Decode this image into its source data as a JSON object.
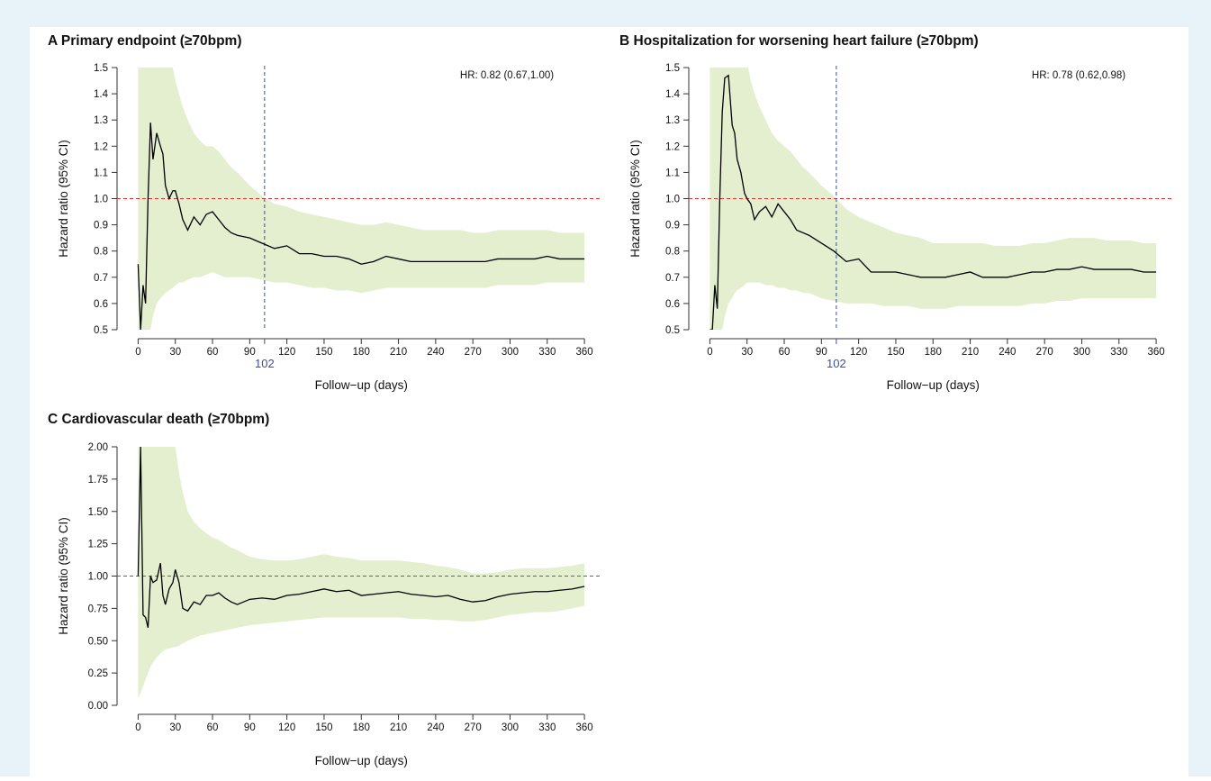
{
  "chart_data": [
    {
      "type": "line",
      "title": "A Primary endpoint (≥70bpm)",
      "xlabel": "Follow−up (days)",
      "ylabel": "Hazard ratio (95% CI)",
      "annotation": "HR: 0.82 (0.67,1.00)",
      "x": [
        0,
        2,
        4,
        6,
        8,
        10,
        12,
        15,
        18,
        20,
        22,
        25,
        28,
        30,
        33,
        36,
        40,
        45,
        50,
        55,
        60,
        65,
        70,
        75,
        80,
        90,
        100,
        110,
        120,
        130,
        140,
        150,
        160,
        170,
        180,
        190,
        200,
        210,
        220,
        230,
        240,
        250,
        260,
        270,
        280,
        290,
        300,
        310,
        320,
        330,
        340,
        350,
        360
      ],
      "series": [
        {
          "color": "#000000",
          "band_color": "#e3efcf",
          "values": [
            0.75,
            0.5,
            0.67,
            0.6,
            1.0,
            1.29,
            1.15,
            1.25,
            1.2,
            1.17,
            1.05,
            1.0,
            1.03,
            1.03,
            0.98,
            0.92,
            0.88,
            0.93,
            0.9,
            0.94,
            0.95,
            0.92,
            0.89,
            0.87,
            0.86,
            0.85,
            0.83,
            0.81,
            0.82,
            0.79,
            0.79,
            0.78,
            0.78,
            0.77,
            0.75,
            0.76,
            0.78,
            0.77,
            0.76,
            0.76,
            0.76,
            0.76,
            0.76,
            0.76,
            0.76,
            0.77,
            0.77,
            0.77,
            0.77,
            0.78,
            0.77,
            0.77,
            0.77
          ],
          "lower": [
            0.2,
            0.2,
            0.2,
            0.3,
            0.4,
            0.5,
            0.55,
            0.6,
            0.62,
            0.63,
            0.64,
            0.65,
            0.66,
            0.67,
            0.68,
            0.68,
            0.69,
            0.7,
            0.7,
            0.71,
            0.72,
            0.71,
            0.7,
            0.7,
            0.7,
            0.7,
            0.69,
            0.68,
            0.68,
            0.67,
            0.66,
            0.66,
            0.65,
            0.65,
            0.64,
            0.65,
            0.66,
            0.66,
            0.66,
            0.66,
            0.66,
            0.66,
            0.66,
            0.66,
            0.66,
            0.67,
            0.67,
            0.67,
            0.67,
            0.68,
            0.68,
            0.68,
            0.68
          ],
          "upper": [
            3,
            3,
            3,
            3,
            3,
            3,
            3,
            2.5,
            1.8,
            1.7,
            1.6,
            1.55,
            1.5,
            1.45,
            1.4,
            1.35,
            1.3,
            1.25,
            1.22,
            1.2,
            1.2,
            1.18,
            1.15,
            1.12,
            1.1,
            1.05,
            1.01,
            0.98,
            0.97,
            0.95,
            0.94,
            0.93,
            0.92,
            0.91,
            0.9,
            0.9,
            0.91,
            0.9,
            0.89,
            0.88,
            0.88,
            0.88,
            0.88,
            0.87,
            0.87,
            0.88,
            0.88,
            0.88,
            0.88,
            0.88,
            0.87,
            0.87,
            0.87
          ]
        }
      ],
      "xlim": [
        -17,
        373
      ],
      "ylim": [
        0.5,
        1.5
      ],
      "xticks": [
        0,
        30,
        60,
        90,
        120,
        150,
        180,
        210,
        240,
        270,
        300,
        330,
        360
      ],
      "yticks": [
        0.5,
        0.6,
        0.7,
        0.8,
        0.9,
        {
          "value": 1,
          "label": "1.0"
        },
        1.1,
        1.2,
        1.3,
        1.4,
        1.5
      ],
      "hline": {
        "value": 1,
        "color": "#e0302c"
      },
      "vline": {
        "value": 102,
        "color": "#3a4fa0"
      }
    },
    {
      "type": "line",
      "title": "B Hospitalization for worsening heart failure (≥70bpm)",
      "xlabel": "Follow−up (days)",
      "ylabel": "Hazard ratio (95% CI)",
      "annotation": "HR: 0.78 (0.62,0.98)",
      "x": [
        0,
        2,
        4,
        6,
        8,
        10,
        12,
        15,
        18,
        20,
        22,
        25,
        28,
        30,
        33,
        36,
        40,
        45,
        50,
        55,
        60,
        65,
        70,
        75,
        80,
        90,
        100,
        110,
        120,
        130,
        140,
        150,
        160,
        170,
        180,
        190,
        200,
        210,
        220,
        230,
        240,
        250,
        260,
        270,
        280,
        290,
        300,
        310,
        320,
        330,
        340,
        350,
        360
      ],
      "series": [
        {
          "color": "#000000",
          "band_color": "#e3efcf",
          "values": [
            0.5,
            0.5,
            0.67,
            0.58,
            1.0,
            1.33,
            1.46,
            1.47,
            1.28,
            1.25,
            1.15,
            1.1,
            1.02,
            1.0,
            0.98,
            0.92,
            0.95,
            0.97,
            0.93,
            0.98,
            0.95,
            0.92,
            0.88,
            0.87,
            0.86,
            0.83,
            0.8,
            0.76,
            0.77,
            0.72,
            0.72,
            0.72,
            0.71,
            0.7,
            0.7,
            0.7,
            0.71,
            0.72,
            0.7,
            0.7,
            0.7,
            0.71,
            0.72,
            0.72,
            0.73,
            0.73,
            0.74,
            0.73,
            0.73,
            0.73,
            0.73,
            0.72,
            0.72
          ],
          "lower": [
            0.2,
            0.2,
            0.2,
            0.3,
            0.4,
            0.5,
            0.55,
            0.6,
            0.62,
            0.64,
            0.65,
            0.66,
            0.67,
            0.68,
            0.68,
            0.68,
            0.68,
            0.67,
            0.67,
            0.66,
            0.66,
            0.65,
            0.65,
            0.64,
            0.64,
            0.62,
            0.61,
            0.6,
            0.6,
            0.6,
            0.59,
            0.59,
            0.59,
            0.58,
            0.58,
            0.58,
            0.59,
            0.59,
            0.59,
            0.59,
            0.59,
            0.59,
            0.6,
            0.6,
            0.61,
            0.61,
            0.62,
            0.62,
            0.62,
            0.62,
            0.62,
            0.62,
            0.62
          ],
          "upper": [
            3,
            3,
            3,
            3,
            3,
            3,
            3,
            3,
            2.5,
            2.2,
            2,
            1.8,
            1.6,
            1.52,
            1.45,
            1.4,
            1.35,
            1.3,
            1.25,
            1.22,
            1.2,
            1.18,
            1.15,
            1.12,
            1.1,
            1.05,
            1.01,
            0.96,
            0.93,
            0.91,
            0.89,
            0.87,
            0.86,
            0.85,
            0.83,
            0.83,
            0.83,
            0.83,
            0.83,
            0.82,
            0.82,
            0.82,
            0.83,
            0.83,
            0.84,
            0.85,
            0.85,
            0.85,
            0.84,
            0.84,
            0.84,
            0.83,
            0.83
          ]
        }
      ],
      "xlim": [
        -17,
        373
      ],
      "ylim": [
        0.5,
        1.5
      ],
      "xticks": [
        0,
        30,
        60,
        90,
        120,
        150,
        180,
        210,
        240,
        270,
        300,
        330,
        360
      ],
      "yticks": [
        0.5,
        0.6,
        0.7,
        0.8,
        0.9,
        {
          "value": 1,
          "label": "1.0"
        },
        1.1,
        1.2,
        1.3,
        1.4,
        1.5
      ],
      "hline": {
        "value": 1,
        "color": "#e0302c"
      },
      "vline": {
        "value": 102,
        "color": "#3a4fa0"
      }
    },
    {
      "type": "line",
      "title": "C Cardiovascular death (≥70bpm)",
      "xlabel": "Follow−up (days)",
      "ylabel": "Hazard ratio (95% CI)",
      "x": [
        0,
        2,
        4,
        6,
        8,
        10,
        12,
        15,
        18,
        20,
        22,
        25,
        28,
        30,
        33,
        36,
        40,
        45,
        50,
        55,
        60,
        65,
        70,
        75,
        80,
        90,
        100,
        110,
        120,
        130,
        140,
        150,
        160,
        170,
        180,
        190,
        200,
        210,
        220,
        230,
        240,
        250,
        260,
        270,
        280,
        290,
        300,
        310,
        320,
        330,
        340,
        350,
        360
      ],
      "series": [
        {
          "color": "#000000",
          "band_color": "#e3efcf",
          "values": [
            1.0,
            2.0,
            0.7,
            0.68,
            0.6,
            1.0,
            0.95,
            0.97,
            1.1,
            0.85,
            0.78,
            0.9,
            0.95,
            1.05,
            0.95,
            0.75,
            0.73,
            0.8,
            0.78,
            0.85,
            0.85,
            0.87,
            0.83,
            0.8,
            0.78,
            0.82,
            0.83,
            0.82,
            0.85,
            0.86,
            0.88,
            0.9,
            0.88,
            0.89,
            0.85,
            0.86,
            0.87,
            0.88,
            0.86,
            0.85,
            0.84,
            0.85,
            0.82,
            0.8,
            0.81,
            0.84,
            0.86,
            0.87,
            0.88,
            0.88,
            0.89,
            0.9,
            0.92
          ],
          "lower": [
            0.05,
            0.1,
            0.15,
            0.2,
            0.25,
            0.3,
            0.33,
            0.37,
            0.4,
            0.42,
            0.43,
            0.44,
            0.45,
            0.45,
            0.46,
            0.48,
            0.5,
            0.52,
            0.54,
            0.55,
            0.56,
            0.57,
            0.58,
            0.59,
            0.6,
            0.62,
            0.63,
            0.64,
            0.65,
            0.66,
            0.67,
            0.68,
            0.68,
            0.68,
            0.68,
            0.68,
            0.68,
            0.68,
            0.67,
            0.67,
            0.66,
            0.66,
            0.65,
            0.65,
            0.66,
            0.68,
            0.7,
            0.71,
            0.72,
            0.72,
            0.73,
            0.75,
            0.77
          ],
          "upper": [
            4,
            4,
            4,
            4,
            4,
            4,
            4,
            4,
            3,
            2.8,
            2.6,
            2.3,
            2.1,
            2.0,
            1.8,
            1.65,
            1.5,
            1.42,
            1.37,
            1.33,
            1.3,
            1.28,
            1.25,
            1.22,
            1.2,
            1.15,
            1.13,
            1.12,
            1.12,
            1.13,
            1.15,
            1.17,
            1.15,
            1.14,
            1.12,
            1.12,
            1.12,
            1.12,
            1.11,
            1.1,
            1.08,
            1.07,
            1.05,
            1.02,
            1.02,
            1.03,
            1.05,
            1.06,
            1.06,
            1.06,
            1.07,
            1.08,
            1.1
          ]
        }
      ],
      "xlim": [
        -17,
        373
      ],
      "ylim": [
        0,
        2
      ],
      "xticks": [
        0,
        30,
        60,
        90,
        120,
        150,
        180,
        210,
        240,
        270,
        300,
        330,
        360
      ],
      "yticks": [
        {
          "value": 0,
          "label": "0.00"
        },
        {
          "value": 0.25,
          "label": "0.25"
        },
        {
          "value": 0.5,
          "label": "0.50"
        },
        {
          "value": 0.75,
          "label": "0.75"
        },
        {
          "value": 1,
          "label": "1.00"
        },
        {
          "value": 1.25,
          "label": "1.25"
        },
        {
          "value": 1.5,
          "label": "1.50"
        },
        {
          "value": 1.75,
          "label": "1.75"
        },
        {
          "value": 2,
          "label": "2.00"
        }
      ],
      "hline": {
        "value": 1,
        "color": "#e0302c"
      }
    }
  ]
}
